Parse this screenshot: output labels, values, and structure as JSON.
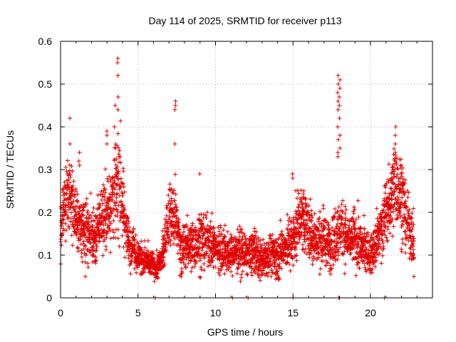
{
  "chart_data": {
    "type": "scatter",
    "title": "Day 114 of 2025, SRMTID for receiver p113",
    "xlabel": "GPS time / hours",
    "ylabel": "SRMTID / TECUs",
    "xlim": [
      0,
      24
    ],
    "ylim": [
      0,
      0.6
    ],
    "xticks": [
      "0",
      "5",
      "10",
      "15",
      "20"
    ],
    "yticks": [
      "0",
      "0.1",
      "0.2",
      "0.3",
      "0.4",
      "0.5",
      "0.6"
    ],
    "grid": true,
    "marker": "+",
    "series_color": "#e00000",
    "profile": {
      "x": [
        0,
        0.3,
        0.6,
        1.0,
        1.4,
        1.8,
        2.2,
        2.6,
        3.0,
        3.3,
        3.6,
        3.8,
        4.0,
        4.3,
        4.7,
        5.0,
        5.4,
        5.8,
        6.2,
        6.6,
        7.0,
        7.4,
        7.8,
        8.2,
        8.6,
        9.0,
        9.5,
        10.0,
        10.5,
        11.0,
        11.5,
        12.0,
        12.5,
        13.0,
        13.5,
        14.0,
        14.5,
        15.0,
        15.4,
        15.8,
        16.2,
        16.6,
        17.0,
        17.4,
        17.8,
        18.2,
        18.6,
        19.0,
        19.5,
        20.0,
        20.4,
        20.8,
        21.2,
        21.6,
        22.0,
        22.4,
        22.8
      ],
      "y": [
        0.14,
        0.22,
        0.24,
        0.2,
        0.15,
        0.16,
        0.13,
        0.19,
        0.2,
        0.24,
        0.25,
        0.28,
        0.22,
        0.14,
        0.12,
        0.1,
        0.09,
        0.08,
        0.07,
        0.1,
        0.2,
        0.19,
        0.11,
        0.13,
        0.12,
        0.14,
        0.13,
        0.12,
        0.11,
        0.1,
        0.11,
        0.1,
        0.11,
        0.09,
        0.1,
        0.1,
        0.12,
        0.14,
        0.19,
        0.18,
        0.15,
        0.13,
        0.14,
        0.12,
        0.15,
        0.16,
        0.13,
        0.14,
        0.12,
        0.1,
        0.13,
        0.18,
        0.22,
        0.27,
        0.24,
        0.17,
        0.13
      ],
      "spread": [
        0.04,
        0.06,
        0.07,
        0.06,
        0.05,
        0.05,
        0.04,
        0.05,
        0.06,
        0.08,
        0.09,
        0.09,
        0.07,
        0.04,
        0.03,
        0.03,
        0.03,
        0.02,
        0.02,
        0.03,
        0.05,
        0.05,
        0.04,
        0.04,
        0.04,
        0.05,
        0.04,
        0.04,
        0.04,
        0.03,
        0.04,
        0.03,
        0.04,
        0.03,
        0.03,
        0.04,
        0.04,
        0.05,
        0.05,
        0.05,
        0.05,
        0.04,
        0.05,
        0.04,
        0.05,
        0.05,
        0.04,
        0.05,
        0.04,
        0.03,
        0.04,
        0.05,
        0.06,
        0.07,
        0.07,
        0.05,
        0.04
      ]
    },
    "spikes": [
      {
        "x": 0.6,
        "values": [
          0.42,
          0.36
        ]
      },
      {
        "x": 1.2,
        "values": [
          0.34,
          0.32,
          0.31
        ]
      },
      {
        "x": 3.0,
        "values": [
          0.36,
          0.38,
          0.39
        ]
      },
      {
        "x": 3.5,
        "values": [
          0.35,
          0.4,
          0.45
        ]
      },
      {
        "x": 3.7,
        "values": [
          0.44,
          0.47,
          0.52,
          0.55,
          0.56
        ]
      },
      {
        "x": 7.4,
        "values": [
          0.46,
          0.45,
          0.44,
          0.36
        ]
      },
      {
        "x": 8.95,
        "values": [
          0.29
        ]
      },
      {
        "x": 15.0,
        "values": [
          0.28,
          0.29
        ]
      },
      {
        "x": 17.9,
        "values": [
          0.52,
          0.5,
          0.48,
          0.46,
          0.44,
          0.4,
          0.37,
          0.34,
          0.33
        ]
      },
      {
        "x": 18.0,
        "values": [
          0.51,
          0.49,
          0.47,
          0.45,
          0.42,
          0.38,
          0.35
        ]
      },
      {
        "x": 21.6,
        "values": [
          0.4,
          0.38,
          0.36,
          0.34,
          0.32
        ]
      },
      {
        "x": 22.0,
        "values": [
          0.31,
          0.29
        ]
      }
    ],
    "zero_points": [
      6.1,
      11.1,
      12.1,
      15.0,
      17.95,
      18.0,
      20.9
    ],
    "low_points": [
      {
        "x": 22.8,
        "y": 0.05
      },
      {
        "x": 1.6,
        "y": 0.05
      }
    ]
  }
}
